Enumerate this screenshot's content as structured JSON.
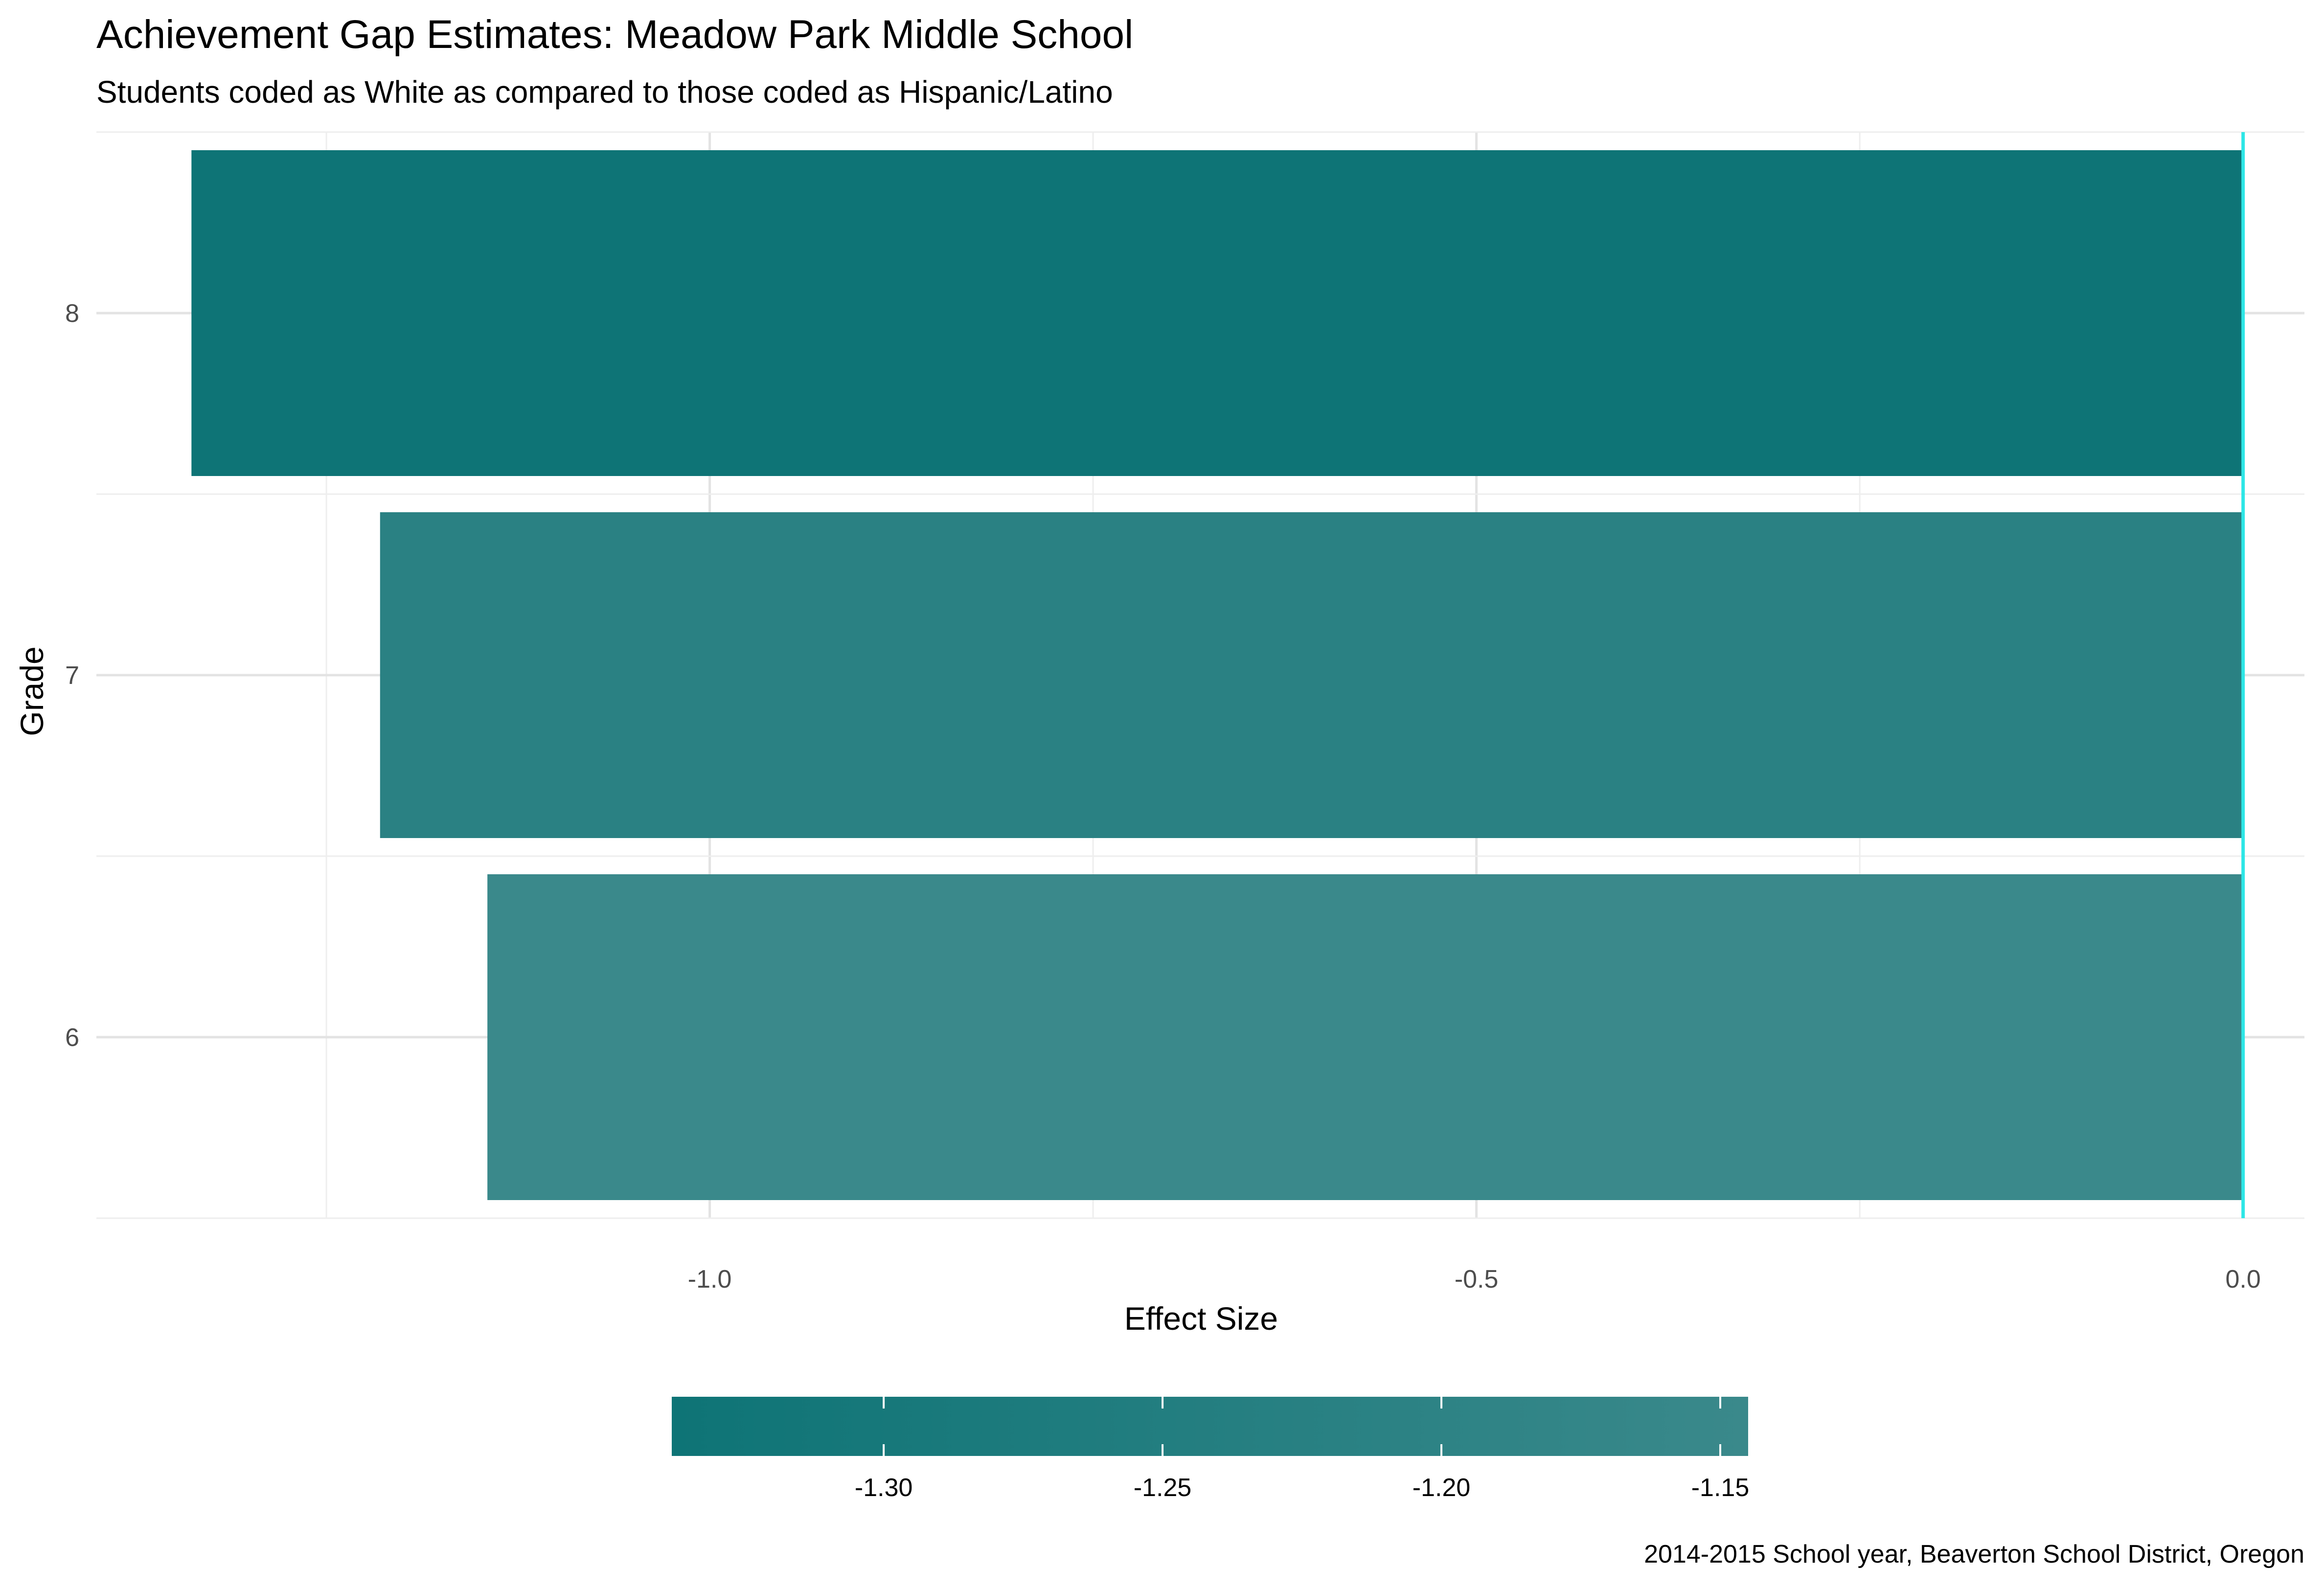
{
  "chart_data": {
    "type": "bar",
    "orientation": "horizontal",
    "title": "Achievement Gap Estimates: Meadow Park Middle School",
    "subtitle": "Students coded as White as compared to those coded as Hispanic/Latino",
    "xlabel": "Effect Size",
    "ylabel": "Grade",
    "caption": "2014-2015 School year, Beaverton School District, Oregon",
    "categories": [
      "6",
      "7",
      "8"
    ],
    "values": [
      -1.145,
      -1.215,
      -1.338
    ],
    "xlim": [
      -1.4,
      0.04
    ],
    "x_ticks": [
      -1.0,
      -0.5,
      0.0
    ],
    "x_tick_labels": [
      "-1.0",
      "-0.5",
      "0.0"
    ],
    "grid": true,
    "reference_line": {
      "x": 0.0,
      "color": "#2ee6e6"
    },
    "colorbar": {
      "position": "bottom",
      "range": [
        -1.338,
        -1.145
      ],
      "ticks": [
        -1.3,
        -1.25,
        -1.2,
        -1.15
      ],
      "tick_labels": [
        "-1.30",
        "-1.25",
        "-1.20",
        "-1.15"
      ],
      "color_low": "#0e7476",
      "color_high": "#3a898b"
    }
  }
}
